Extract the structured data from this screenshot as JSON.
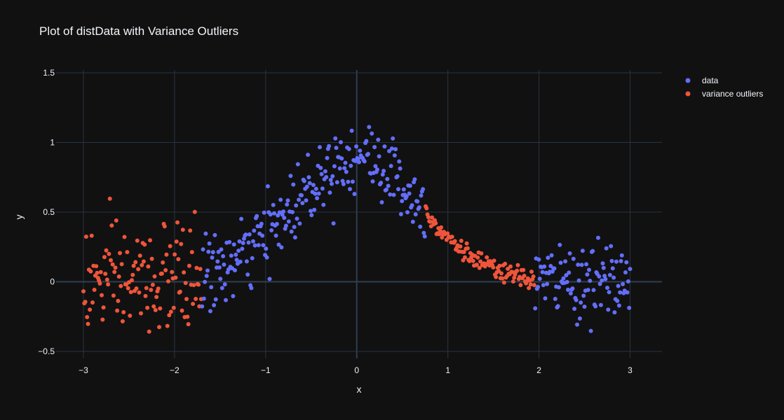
{
  "chart_data": {
    "type": "scatter",
    "title": "Plot of distData with Variance Outliers",
    "xlabel": "x",
    "ylabel": "y",
    "xlim": [
      -3.3,
      3.35
    ],
    "ylim": [
      -0.55,
      1.52
    ],
    "xticks": [
      -3,
      -2,
      -1,
      0,
      1,
      2,
      3
    ],
    "xtick_labels": [
      "−3",
      "−2",
      "−1",
      "0",
      "1",
      "2",
      "3"
    ],
    "yticks": [
      -0.5,
      0,
      0.5,
      1,
      1.5
    ],
    "ytick_labels": [
      "−0.5",
      "0",
      "0.5",
      "1",
      "1.5"
    ],
    "grid": true,
    "legend_position": "top-right",
    "colors": {
      "background": "#111111",
      "grid": "#283442",
      "zeroline": "#2f3e50",
      "data": "#636efa",
      "outliers": "#ef553b"
    },
    "generator": {
      "points": 600,
      "x_range": [
        -3,
        3
      ],
      "peak": 0.9,
      "width": 0.7,
      "noise": 0.13,
      "outlier_x_ranges": [
        [
          -3,
          -1.7
        ],
        [
          0.75,
          1.95
        ]
      ]
    },
    "series": [
      {
        "name": "data",
        "color": "#636efa"
      },
      {
        "name": "variance outliers",
        "color": "#ef553b"
      }
    ]
  }
}
